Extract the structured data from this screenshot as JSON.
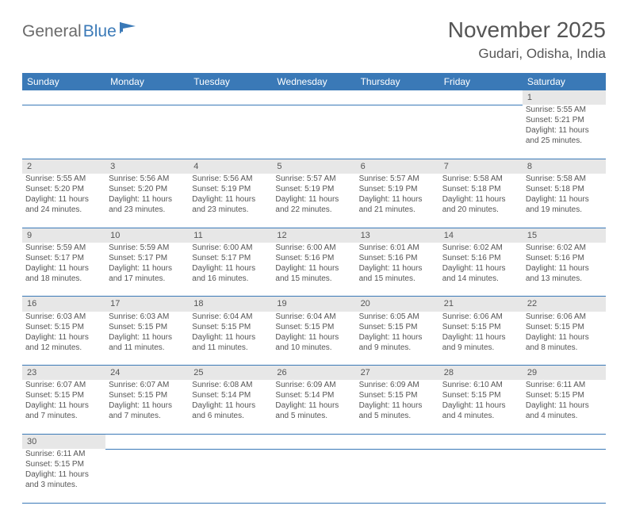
{
  "brand": {
    "word1": "General",
    "word2": "Blue"
  },
  "title": "November 2025",
  "location": "Gudari, Odisha, India",
  "colors": {
    "header_bg": "#3a79b7",
    "header_text": "#ffffff",
    "daynum_bg": "#e7e7e7",
    "border": "#3a79b7",
    "text": "#555555",
    "page_bg": "#ffffff"
  },
  "weekdays": [
    "Sunday",
    "Monday",
    "Tuesday",
    "Wednesday",
    "Thursday",
    "Friday",
    "Saturday"
  ],
  "weeks": [
    [
      null,
      null,
      null,
      null,
      null,
      null,
      {
        "n": "1",
        "sr": "5:55 AM",
        "ss": "5:21 PM",
        "dl": "11 hours and 25 minutes."
      }
    ],
    [
      {
        "n": "2",
        "sr": "5:55 AM",
        "ss": "5:20 PM",
        "dl": "11 hours and 24 minutes."
      },
      {
        "n": "3",
        "sr": "5:56 AM",
        "ss": "5:20 PM",
        "dl": "11 hours and 23 minutes."
      },
      {
        "n": "4",
        "sr": "5:56 AM",
        "ss": "5:19 PM",
        "dl": "11 hours and 23 minutes."
      },
      {
        "n": "5",
        "sr": "5:57 AM",
        "ss": "5:19 PM",
        "dl": "11 hours and 22 minutes."
      },
      {
        "n": "6",
        "sr": "5:57 AM",
        "ss": "5:19 PM",
        "dl": "11 hours and 21 minutes."
      },
      {
        "n": "7",
        "sr": "5:58 AM",
        "ss": "5:18 PM",
        "dl": "11 hours and 20 minutes."
      },
      {
        "n": "8",
        "sr": "5:58 AM",
        "ss": "5:18 PM",
        "dl": "11 hours and 19 minutes."
      }
    ],
    [
      {
        "n": "9",
        "sr": "5:59 AM",
        "ss": "5:17 PM",
        "dl": "11 hours and 18 minutes."
      },
      {
        "n": "10",
        "sr": "5:59 AM",
        "ss": "5:17 PM",
        "dl": "11 hours and 17 minutes."
      },
      {
        "n": "11",
        "sr": "6:00 AM",
        "ss": "5:17 PM",
        "dl": "11 hours and 16 minutes."
      },
      {
        "n": "12",
        "sr": "6:00 AM",
        "ss": "5:16 PM",
        "dl": "11 hours and 15 minutes."
      },
      {
        "n": "13",
        "sr": "6:01 AM",
        "ss": "5:16 PM",
        "dl": "11 hours and 15 minutes."
      },
      {
        "n": "14",
        "sr": "6:02 AM",
        "ss": "5:16 PM",
        "dl": "11 hours and 14 minutes."
      },
      {
        "n": "15",
        "sr": "6:02 AM",
        "ss": "5:16 PM",
        "dl": "11 hours and 13 minutes."
      }
    ],
    [
      {
        "n": "16",
        "sr": "6:03 AM",
        "ss": "5:15 PM",
        "dl": "11 hours and 12 minutes."
      },
      {
        "n": "17",
        "sr": "6:03 AM",
        "ss": "5:15 PM",
        "dl": "11 hours and 11 minutes."
      },
      {
        "n": "18",
        "sr": "6:04 AM",
        "ss": "5:15 PM",
        "dl": "11 hours and 11 minutes."
      },
      {
        "n": "19",
        "sr": "6:04 AM",
        "ss": "5:15 PM",
        "dl": "11 hours and 10 minutes."
      },
      {
        "n": "20",
        "sr": "6:05 AM",
        "ss": "5:15 PM",
        "dl": "11 hours and 9 minutes."
      },
      {
        "n": "21",
        "sr": "6:06 AM",
        "ss": "5:15 PM",
        "dl": "11 hours and 9 minutes."
      },
      {
        "n": "22",
        "sr": "6:06 AM",
        "ss": "5:15 PM",
        "dl": "11 hours and 8 minutes."
      }
    ],
    [
      {
        "n": "23",
        "sr": "6:07 AM",
        "ss": "5:15 PM",
        "dl": "11 hours and 7 minutes."
      },
      {
        "n": "24",
        "sr": "6:07 AM",
        "ss": "5:15 PM",
        "dl": "11 hours and 7 minutes."
      },
      {
        "n": "25",
        "sr": "6:08 AM",
        "ss": "5:14 PM",
        "dl": "11 hours and 6 minutes."
      },
      {
        "n": "26",
        "sr": "6:09 AM",
        "ss": "5:14 PM",
        "dl": "11 hours and 5 minutes."
      },
      {
        "n": "27",
        "sr": "6:09 AM",
        "ss": "5:15 PM",
        "dl": "11 hours and 5 minutes."
      },
      {
        "n": "28",
        "sr": "6:10 AM",
        "ss": "5:15 PM",
        "dl": "11 hours and 4 minutes."
      },
      {
        "n": "29",
        "sr": "6:11 AM",
        "ss": "5:15 PM",
        "dl": "11 hours and 4 minutes."
      }
    ],
    [
      {
        "n": "30",
        "sr": "6:11 AM",
        "ss": "5:15 PM",
        "dl": "11 hours and 3 minutes."
      },
      null,
      null,
      null,
      null,
      null,
      null
    ]
  ],
  "labels": {
    "sunrise": "Sunrise:",
    "sunset": "Sunset:",
    "daylight": "Daylight:"
  }
}
